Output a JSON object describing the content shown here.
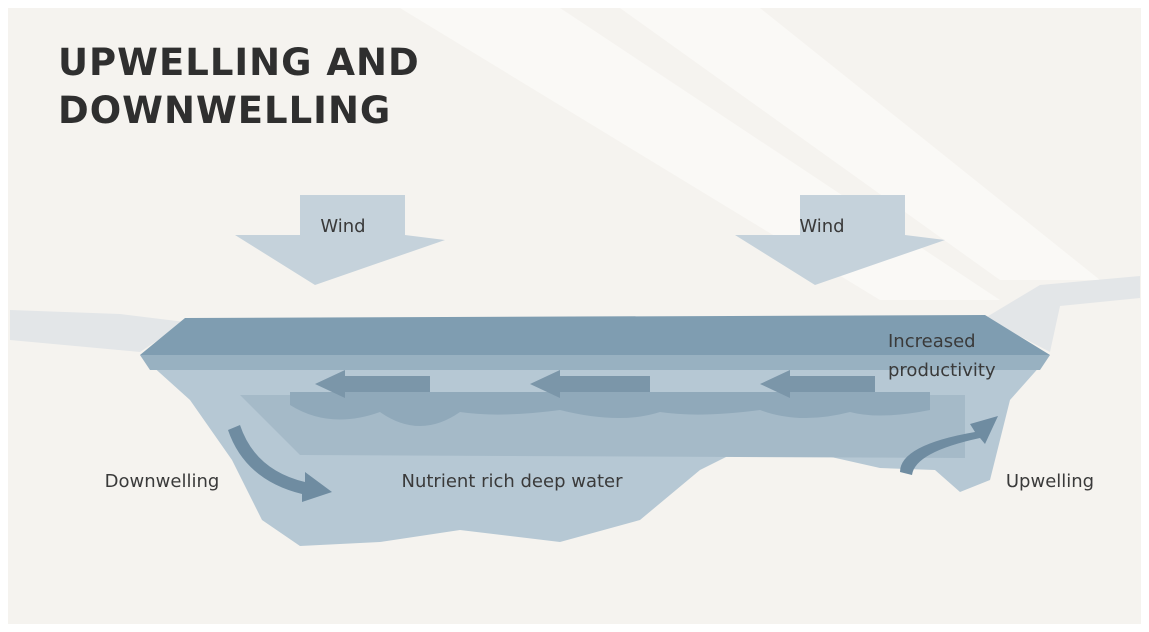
{
  "title_lines": [
    "UPWELLING AND",
    "DOWNWELLING"
  ],
  "labels": {
    "wind_left": "Wind",
    "wind_right": "Wind",
    "productivity_lines": [
      "Increased",
      "productivity"
    ],
    "downwelling": "Downwelling",
    "deep_water": "Nutrient rich deep water",
    "upwelling": "Upwelling"
  }
}
